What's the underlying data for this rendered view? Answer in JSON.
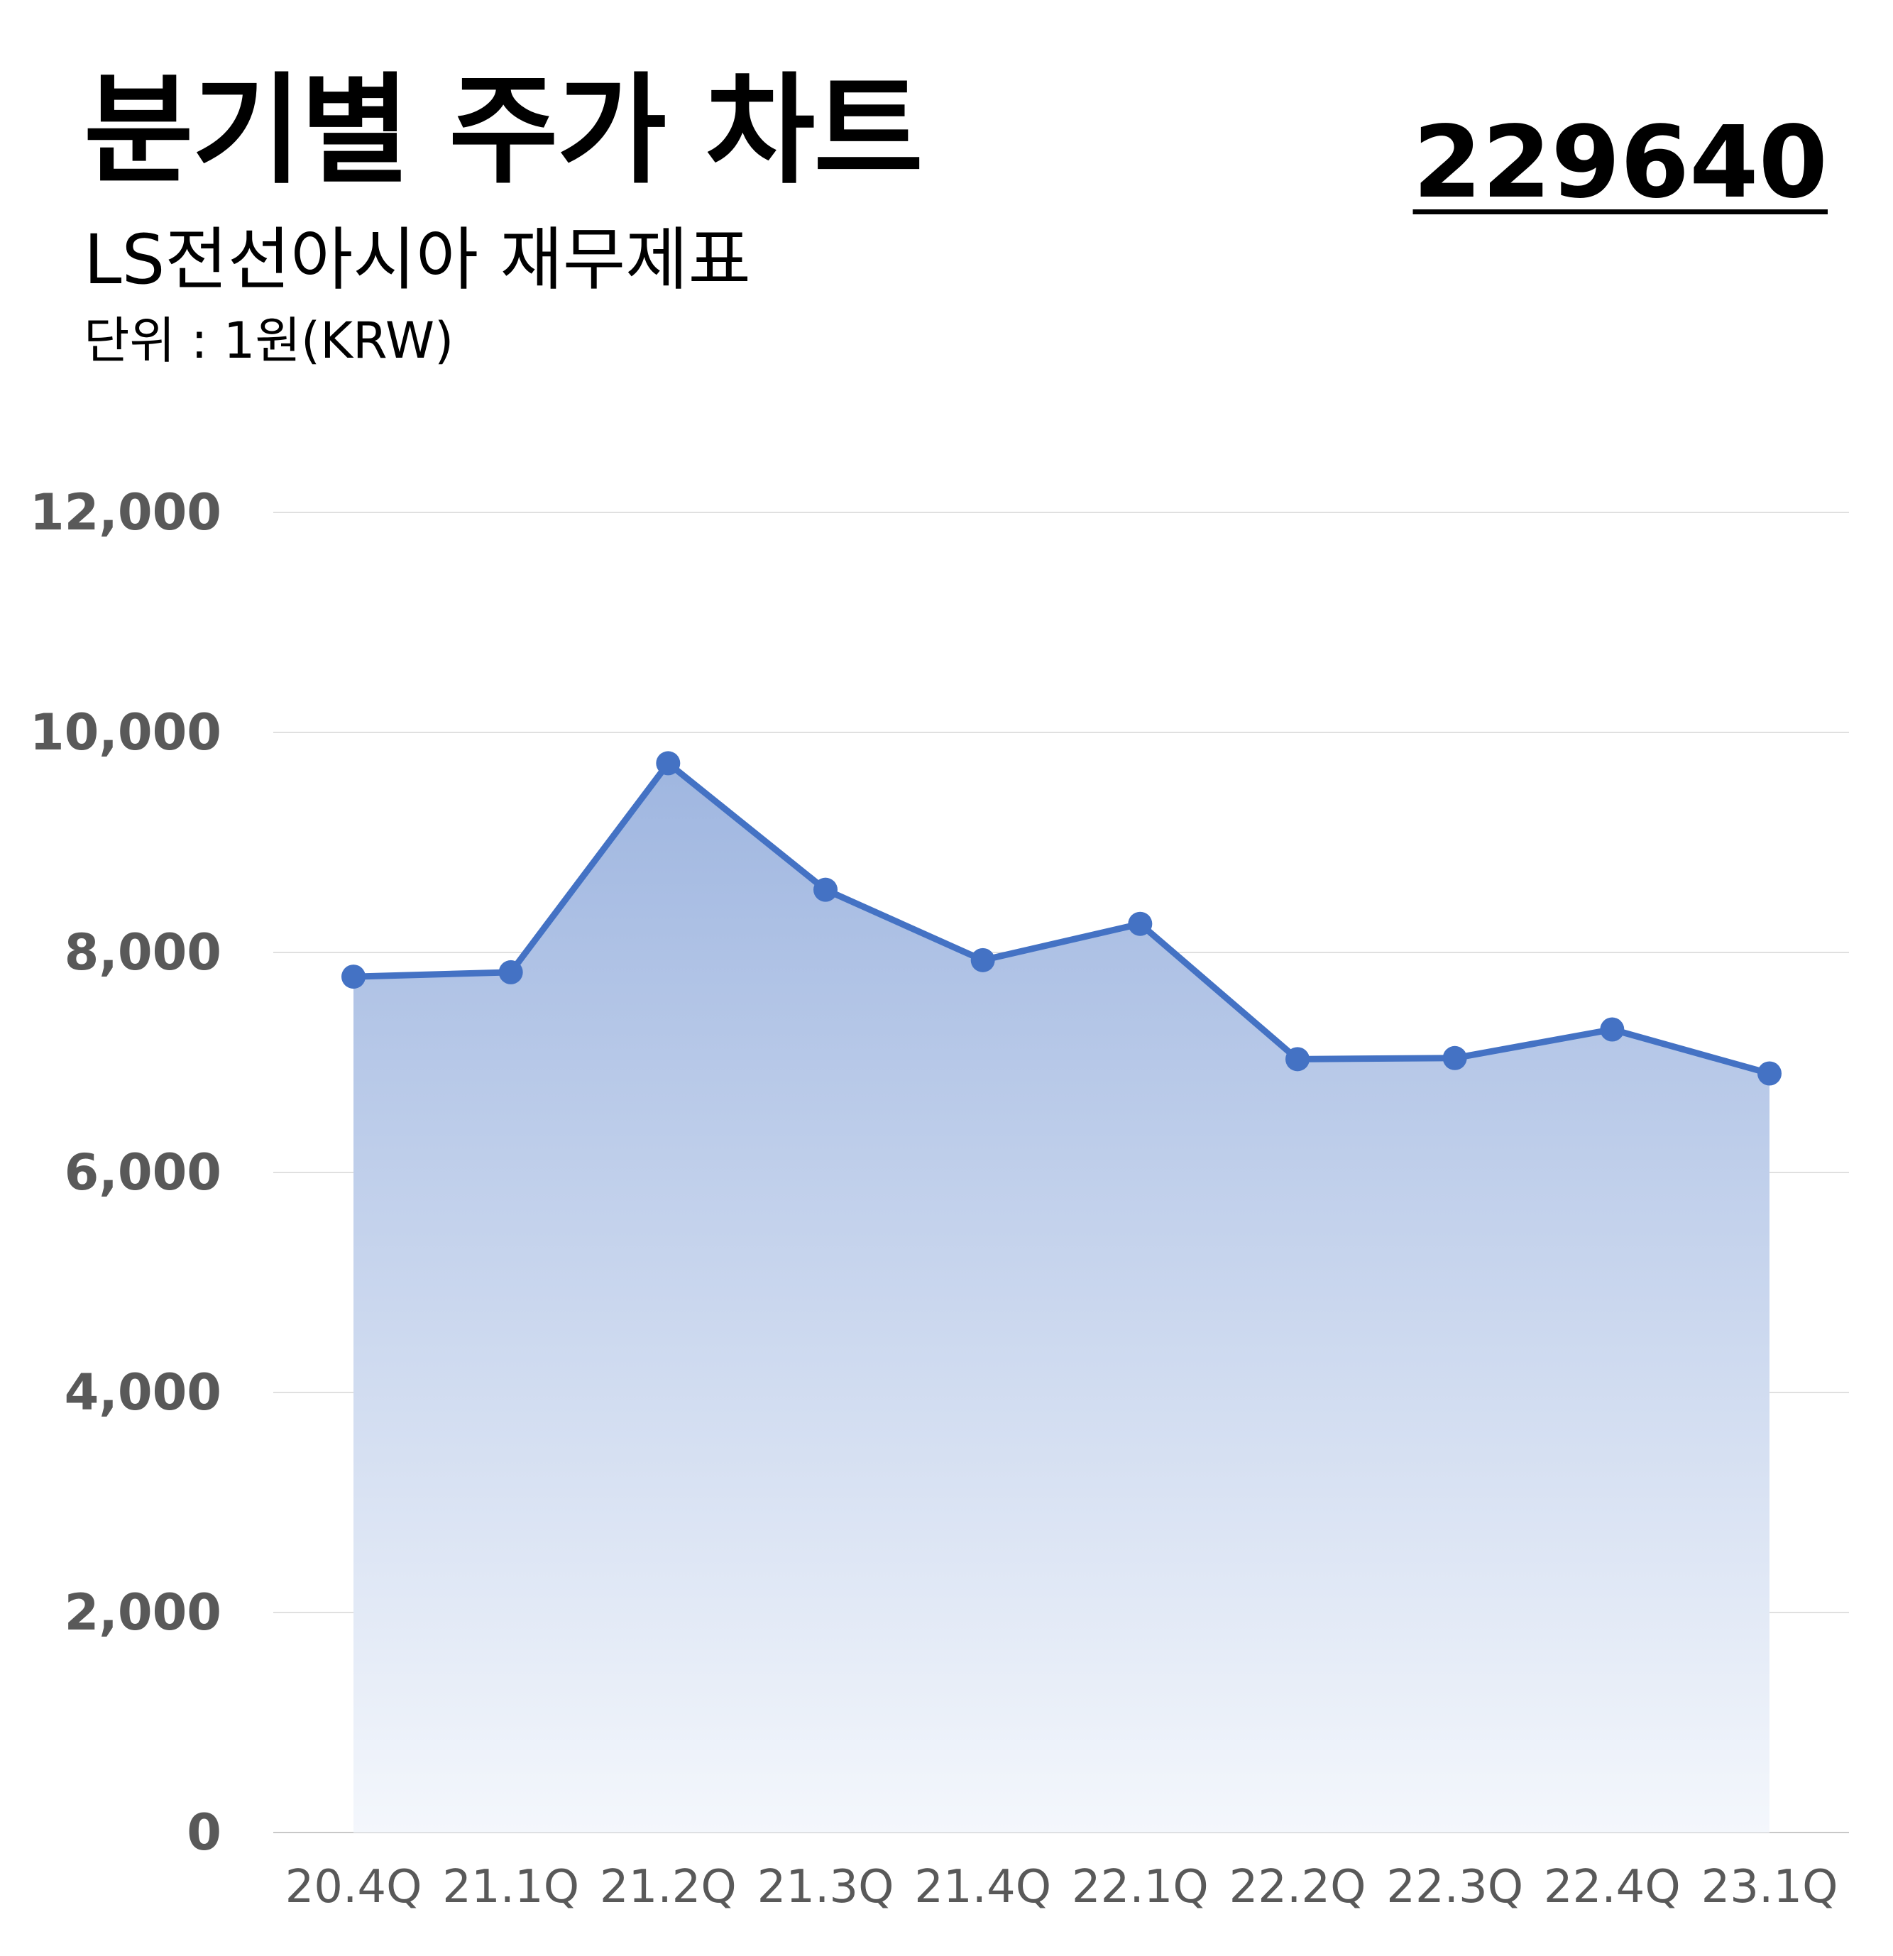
{
  "header": {
    "title": "분기별 주가 차트",
    "subtitle": "LS전선아시아 재무제표",
    "unit": "단위 : 1원(KRW)",
    "code": "229640"
  },
  "colors": {
    "line": "#4472C4",
    "fill_top": "#9FB6E0",
    "fill_bottom": "#F4F7FC",
    "grid": "#E0E0E0",
    "axis_text": "#595959"
  },
  "chart_data": {
    "type": "area",
    "categories": [
      "20.4Q",
      "21.1Q",
      "21.2Q",
      "21.3Q",
      "21.4Q",
      "22.1Q",
      "22.2Q",
      "22.3Q",
      "22.4Q",
      "23.1Q"
    ],
    "series": [
      {
        "values": [
          7780,
          7820,
          9720,
          8570,
          7930,
          8260,
          7030,
          7040,
          7300,
          6900
        ]
      }
    ],
    "yticks": [
      "0",
      "2,000",
      "4,000",
      "6,000",
      "8,000",
      "10,000",
      "12,000"
    ],
    "ylim": [
      0,
      12000
    ],
    "grid": true,
    "markers": true,
    "legend": "none"
  }
}
